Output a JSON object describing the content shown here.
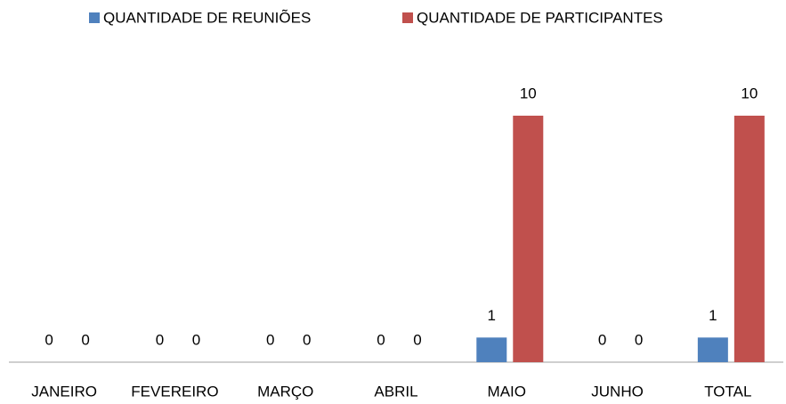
{
  "chart_data": {
    "type": "bar",
    "categories": [
      "JANEIRO",
      "FEVEREIRO",
      "MARÇO",
      "ABRIL",
      "MAIO",
      "JUNHO",
      "TOTAL"
    ],
    "series": [
      {
        "name": "QUANTIDADE DE REUNIÕES",
        "color": "#4f81bd",
        "values": [
          0,
          0,
          0,
          0,
          1,
          0,
          1
        ]
      },
      {
        "name": "QUANTIDADE DE PARTICIPANTES",
        "color": "#c0504d",
        "values": [
          0,
          0,
          0,
          0,
          10,
          0,
          10
        ]
      }
    ],
    "legend": "top"
  }
}
